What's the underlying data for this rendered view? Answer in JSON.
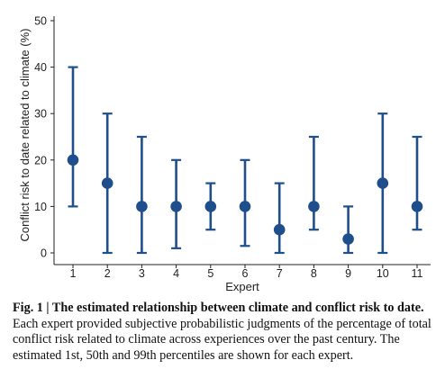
{
  "chart_data": {
    "type": "errorbar",
    "xlabel": "Expert",
    "ylabel": "Conflict risk to date related to climate (%)",
    "ylim": [
      0,
      50
    ],
    "yticks": [
      0,
      10,
      20,
      30,
      40,
      50
    ],
    "categories": [
      "1",
      "2",
      "3",
      "4",
      "5",
      "6",
      "7",
      "8",
      "9",
      "10",
      "11"
    ],
    "median": [
      20,
      15,
      10,
      10,
      10,
      10,
      5,
      10,
      3,
      15,
      10
    ],
    "p1": [
      10,
      0,
      0,
      1,
      5,
      1.5,
      0,
      5,
      0,
      0,
      5
    ],
    "p99": [
      40,
      30,
      25,
      20,
      15,
      20,
      15,
      25,
      10,
      30,
      25
    ],
    "color": "#1f4e8c",
    "grid": false
  },
  "caption": {
    "label": "Fig. 1 | The estimated relationship between climate and conflict risk to date.",
    "text": " Each expert provided subjective probabilistic judgments of the percentage of total conflict risk related to climate across experiences over the past century. The estimated 1st, 50th and 99th percentiles are shown for each expert."
  }
}
